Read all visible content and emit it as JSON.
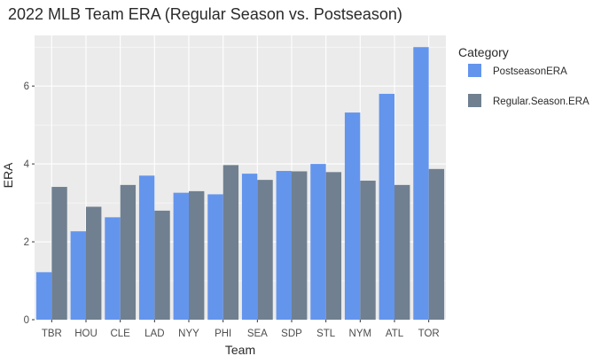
{
  "chart_data": {
    "type": "bar",
    "title": "2022 MLB Team ERA (Regular Season vs. Postseason)",
    "xlabel": "Team",
    "ylabel": "ERA",
    "ylim": [
      0,
      7.3
    ],
    "yticks": [
      0,
      2,
      4,
      6
    ],
    "grid": true,
    "legend_placement": "right",
    "legend_title": "Category",
    "categories": [
      "TBR",
      "HOU",
      "CLE",
      "LAD",
      "NYY",
      "PHI",
      "SEA",
      "SDP",
      "STL",
      "NYM",
      "ATL",
      "TOR"
    ],
    "series": [
      {
        "name": "PostseasonERA",
        "color": "#6495ED",
        "values": [
          1.22,
          2.27,
          2.63,
          3.7,
          3.26,
          3.22,
          3.75,
          3.82,
          4.0,
          5.32,
          5.8,
          7.0
        ]
      },
      {
        "name": "Regular.Season.ERA",
        "color": "#708090",
        "values": [
          3.41,
          2.9,
          3.46,
          2.8,
          3.3,
          3.97,
          3.59,
          3.81,
          3.79,
          3.57,
          3.46,
          3.87
        ]
      }
    ],
    "panel_color": "#EBEBEB",
    "grid_color": "#FFFFFF"
  }
}
